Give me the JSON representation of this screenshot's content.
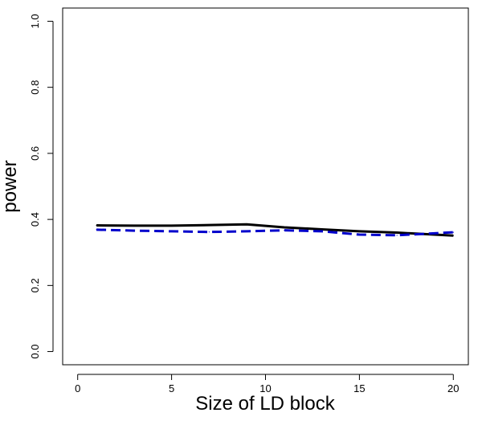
{
  "chart_data": {
    "type": "line",
    "title": "",
    "xlabel": "Size of LD block",
    "ylabel": "power",
    "xlim": [
      -0.8,
      20.8
    ],
    "ylim": [
      -0.04,
      1.04
    ],
    "x_ticks": [
      0,
      5,
      10,
      15,
      20
    ],
    "x_tick_labels": [
      "0",
      "5",
      "10",
      "15",
      "20"
    ],
    "y_ticks": [
      0.0,
      0.2,
      0.4,
      0.6,
      0.8,
      1.0
    ],
    "y_tick_labels": [
      "0.0",
      "0.2",
      "0.4",
      "0.6",
      "0.8",
      "1.0"
    ],
    "grid": false,
    "legend": "none",
    "series": [
      {
        "color": "#000000",
        "line_style": "solid",
        "x": [
          1,
          3,
          5,
          7,
          9,
          11,
          13,
          15,
          17,
          19,
          20
        ],
        "y": [
          0.382,
          0.381,
          0.381,
          0.383,
          0.385,
          0.376,
          0.37,
          0.364,
          0.36,
          0.354,
          0.351
        ]
      },
      {
        "color": "#0000cc",
        "line_style": "dashed",
        "x": [
          1,
          3,
          5,
          7,
          9,
          11,
          13,
          15,
          17,
          19,
          20
        ],
        "y": [
          0.369,
          0.366,
          0.364,
          0.362,
          0.364,
          0.367,
          0.364,
          0.354,
          0.352,
          0.358,
          0.361
        ]
      }
    ]
  }
}
